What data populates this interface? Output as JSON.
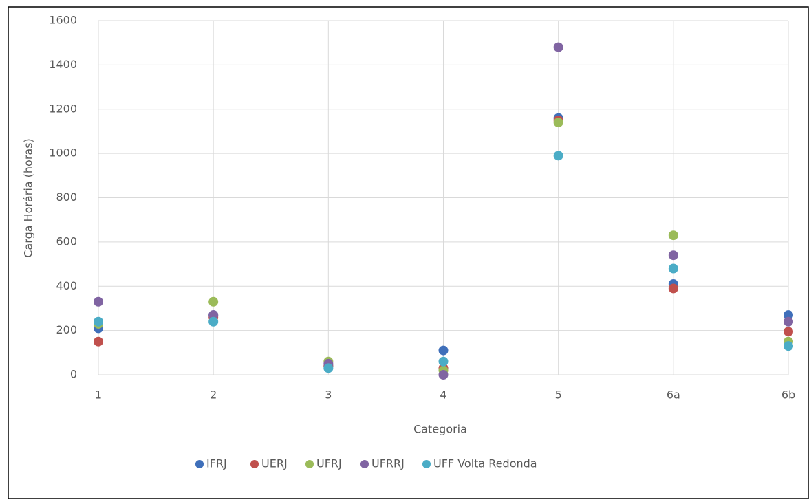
{
  "chart_data": {
    "type": "scatter",
    "x_label": "Categoria",
    "y_label": "Carga Horária (horas)",
    "categories": [
      "1",
      "2",
      "3",
      "4",
      "5",
      "6a",
      "6b"
    ],
    "series": [
      {
        "name": "IFRJ",
        "color": "#3f6fba",
        "values": [
          210,
          270,
          40,
          110,
          1160,
          410,
          270
        ]
      },
      {
        "name": "UERJ",
        "color": "#c0504d",
        "values": [
          150,
          260,
          40,
          30,
          1150,
          390,
          195
        ]
      },
      {
        "name": "UFRJ",
        "color": "#9bbb59",
        "values": [
          230,
          330,
          60,
          20,
          1140,
          630,
          150
        ]
      },
      {
        "name": "UFRRJ",
        "color": "#8064a2",
        "values": [
          330,
          270,
          50,
          0,
          1480,
          540,
          240
        ]
      },
      {
        "name": "UFF Volta Redonda",
        "color": "#4bacc6",
        "values": [
          240,
          240,
          30,
          60,
          990,
          480,
          130
        ]
      }
    ],
    "ylim": [
      0,
      1600
    ],
    "yticks": [
      0,
      200,
      400,
      600,
      800,
      1000,
      1200,
      1400,
      1600
    ],
    "grid": true
  }
}
